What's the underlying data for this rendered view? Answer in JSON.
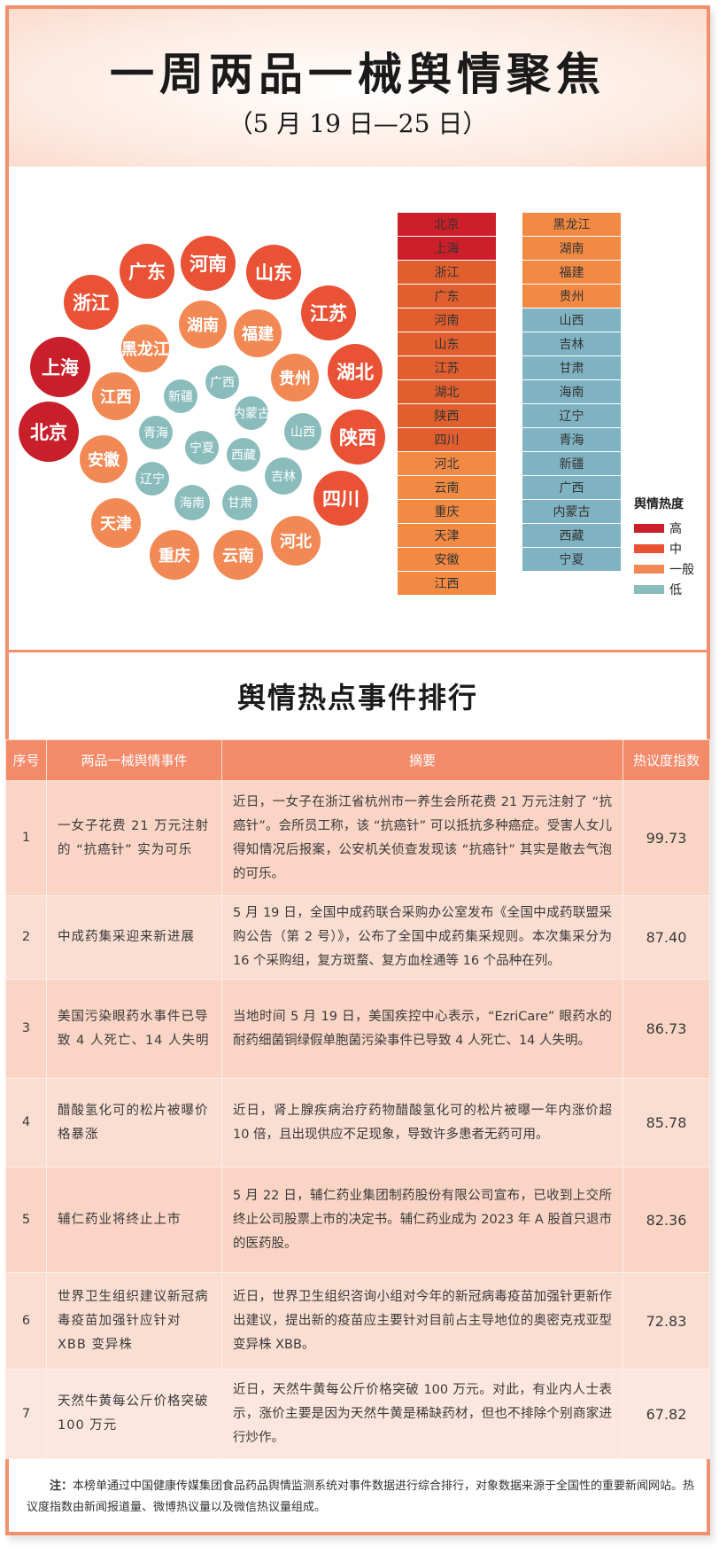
{
  "header": {
    "title": "一周两品一械舆情聚焦",
    "subtitle": "（5 月 19 日—25 日）"
  },
  "colors": {
    "high": "#c91f2b",
    "mid": "#ea5236",
    "general": "#f28955",
    "low": "#8bbcbc",
    "table_high": "#cc1f2a",
    "table_mid": "#e15f2f",
    "table_general": "#f28a43",
    "table_low": "#80b3c2",
    "accent": "#f2906e"
  },
  "bubbles": [
    {
      "name": "广东",
      "level": "mid"
    },
    {
      "name": "河南",
      "level": "mid"
    },
    {
      "name": "山东",
      "level": "mid"
    },
    {
      "name": "浙江",
      "level": "mid"
    },
    {
      "name": "江苏",
      "level": "mid"
    },
    {
      "name": "湖南",
      "level": "general"
    },
    {
      "name": "福建",
      "level": "general"
    },
    {
      "name": "黑龙江",
      "level": "general"
    },
    {
      "name": "上海",
      "level": "high"
    },
    {
      "name": "湖北",
      "level": "mid"
    },
    {
      "name": "贵州",
      "level": "general"
    },
    {
      "name": "江西",
      "level": "general"
    },
    {
      "name": "广西",
      "level": "low"
    },
    {
      "name": "新疆",
      "level": "low"
    },
    {
      "name": "内蒙古",
      "level": "low"
    },
    {
      "name": "北京",
      "level": "high"
    },
    {
      "name": "青海",
      "level": "low"
    },
    {
      "name": "山西",
      "level": "low"
    },
    {
      "name": "陕西",
      "level": "mid"
    },
    {
      "name": "宁夏",
      "level": "low"
    },
    {
      "name": "西藏",
      "level": "low"
    },
    {
      "name": "安徽",
      "level": "general"
    },
    {
      "name": "辽宁",
      "level": "low"
    },
    {
      "name": "吉林",
      "level": "low"
    },
    {
      "name": "四川",
      "level": "mid"
    },
    {
      "name": "海南",
      "level": "low"
    },
    {
      "name": "甘肃",
      "level": "low"
    },
    {
      "name": "天津",
      "level": "general"
    },
    {
      "name": "河北",
      "level": "general"
    },
    {
      "name": "重庆",
      "level": "general"
    },
    {
      "name": "云南",
      "level": "general"
    }
  ],
  "ranking_col1": [
    {
      "name": "北京",
      "level": "high"
    },
    {
      "name": "上海",
      "level": "high"
    },
    {
      "name": "浙江",
      "level": "mid"
    },
    {
      "name": "广东",
      "level": "mid"
    },
    {
      "name": "河南",
      "level": "mid"
    },
    {
      "name": "山东",
      "level": "mid"
    },
    {
      "name": "江苏",
      "level": "mid"
    },
    {
      "name": "湖北",
      "level": "mid"
    },
    {
      "name": "陕西",
      "level": "mid"
    },
    {
      "name": "四川",
      "level": "mid"
    },
    {
      "name": "河北",
      "level": "general"
    },
    {
      "name": "云南",
      "level": "general"
    },
    {
      "name": "重庆",
      "level": "general"
    },
    {
      "name": "天津",
      "level": "general"
    },
    {
      "name": "安徽",
      "level": "general"
    },
    {
      "name": "江西",
      "level": "general"
    }
  ],
  "ranking_col2": [
    {
      "name": "黑龙江",
      "level": "general"
    },
    {
      "name": "湖南",
      "level": "general"
    },
    {
      "name": "福建",
      "level": "general"
    },
    {
      "name": "贵州",
      "level": "general"
    },
    {
      "name": "山西",
      "level": "low"
    },
    {
      "name": "吉林",
      "level": "low"
    },
    {
      "name": "甘肃",
      "level": "low"
    },
    {
      "name": "海南",
      "level": "low"
    },
    {
      "name": "辽宁",
      "level": "low"
    },
    {
      "name": "青海",
      "level": "low"
    },
    {
      "name": "新疆",
      "level": "low"
    },
    {
      "name": "广西",
      "level": "low"
    },
    {
      "name": "内蒙古",
      "level": "low"
    },
    {
      "name": "西藏",
      "level": "low"
    },
    {
      "name": "宁夏",
      "level": "low"
    }
  ],
  "legend": {
    "title": "舆情热度",
    "items": [
      {
        "label": "高",
        "level": "high"
      },
      {
        "label": "中",
        "level": "mid"
      },
      {
        "label": "一般",
        "level": "general"
      },
      {
        "label": "低",
        "level": "low"
      }
    ]
  },
  "section2": {
    "title": "舆情热点事件排行"
  },
  "table": {
    "headers": [
      "序号",
      "两品一械舆情事件",
      "摘要",
      "热议度指数"
    ],
    "rows": [
      {
        "no": "1",
        "event": "一女子花费 21 万元注射的 “抗癌针” 实为可乐",
        "summary": "近日，一女子在浙江省杭州市一养生会所花费 21 万元注射了 “抗癌针”。会所员工称，该 “抗癌针” 可以抵抗多种癌症。受害人女儿得知情况后报案，公安机关侦查发现该 “抗癌针” 其实是散去气泡的可乐。",
        "index": "99.73"
      },
      {
        "no": "2",
        "event": "中成药集采迎来新进展",
        "summary": "5 月 19 日，全国中成药联合采购办公室发布《全国中成药联盟采购公告（第 2 号）》，公布了全国中成药集采规则。本次集采分为 16 个采购组，复方斑蝥、复方血栓通等 16 个品种在列。",
        "index": "87.40"
      },
      {
        "no": "3",
        "event": "美国污染眼药水事件已导致 4 人死亡、14 人失明",
        "summary": "当地时间 5 月 19 日，美国疾控中心表示，“EzriCare” 眼药水的耐药细菌铜绿假单胞菌污染事件已导致 4 人死亡、14 人失明。",
        "index": "86.73"
      },
      {
        "no": "4",
        "event": "醋酸氢化可的松片被曝价格暴涨",
        "summary": "近日，肾上腺疾病治疗药物醋酸氢化可的松片被曝一年内涨价超 10 倍，且出现供应不足现象，导致许多患者无药可用。",
        "index": "85.78"
      },
      {
        "no": "5",
        "event": "辅仁药业将终止上市",
        "summary": "5 月 22 日，辅仁药业集团制药股份有限公司宣布，已收到上交所终止公司股票上市的决定书。辅仁药业成为 2023 年 A 股首只退市的医药股。",
        "index": "82.36"
      },
      {
        "no": "6",
        "event": "世界卫生组织建议新冠病毒疫苗加强针应针对 XBB 变异株",
        "summary": "近日，世界卫生组织咨询小组对今年的新冠病毒疫苗加强针更新作出建议，提出新的疫苗应主要针对目前占主导地位的奥密克戎亚型变异株 XBB。",
        "index": "72.83"
      },
      {
        "no": "7",
        "event": "天然牛黄每公斤价格突破 100 万元",
        "summary": "近日，天然牛黄每公斤价格突破 100 万元。对此，有业内人士表示，涨价主要是因为天然牛黄是稀缺药材，但也不排除个别商家进行炒作。",
        "index": "67.82"
      }
    ]
  },
  "note": {
    "label": "注：",
    "text": "本榜单通过中国健康传媒集团食品药品舆情监测系统对事件数据进行综合排行，对象数据来源于全国性的重要新闻网站。热议度指数由新闻报道量、微博热议量以及微信热议量组成。"
  }
}
